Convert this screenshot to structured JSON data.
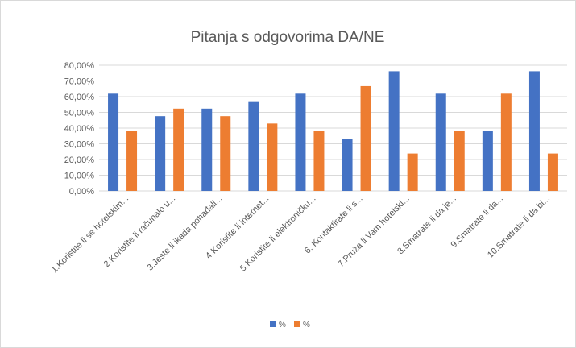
{
  "chart_data": {
    "type": "bar",
    "title": "Pitanja s odgovorima DA/NE",
    "xlabel": "",
    "ylabel": "",
    "ylim": [
      0,
      80
    ],
    "y_ticks": [
      "0,00%",
      "10,00%",
      "20,00%",
      "30,00%",
      "40,00%",
      "50,00%",
      "60,00%",
      "70,00%",
      "80,00%"
    ],
    "grid": true,
    "legend_position": "bottom",
    "categories": [
      "1.Koristite li se hotelskim...",
      "2.Koristite li računalo u...",
      "3.Jeste li ikada pohađali...",
      "4.Koristite li internet...",
      "5.Koristite li elektroničku...",
      "6. Kontaktirate li s...",
      "7.Pruža li Vam hotelski...",
      "8.Smatrate li da je...",
      "9.Smatrate li da...",
      "10.Smatrate li da bi..."
    ],
    "series": [
      {
        "name": "%",
        "color": "#4472c4",
        "values": [
          61.9,
          47.6,
          52.4,
          57.1,
          61.9,
          33.3,
          76.2,
          61.9,
          38.1,
          76.2
        ]
      },
      {
        "name": "%",
        "color": "#ed7d31",
        "values": [
          38.1,
          52.4,
          47.6,
          42.9,
          38.1,
          66.7,
          23.8,
          38.1,
          61.9,
          23.8
        ]
      }
    ]
  }
}
